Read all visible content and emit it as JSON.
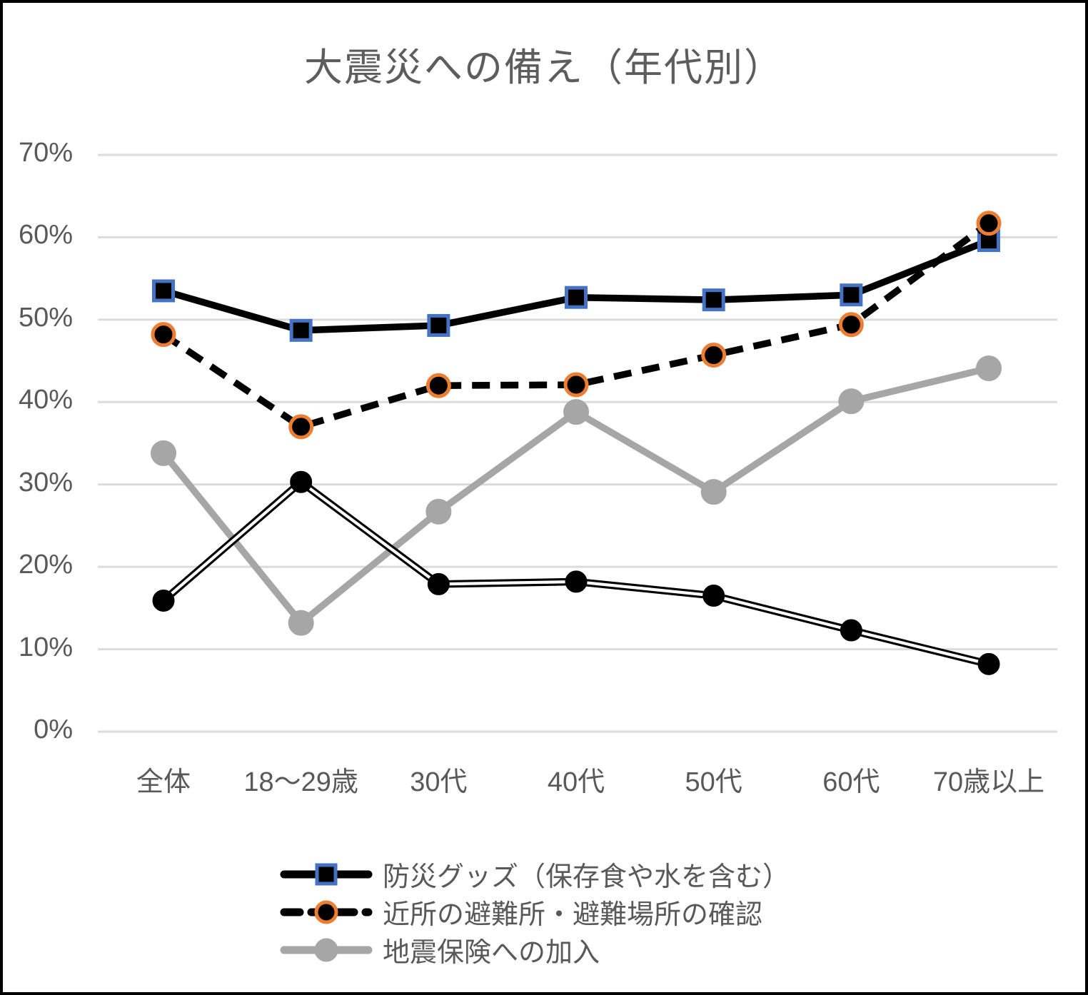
{
  "chart_data": {
    "type": "line",
    "title": "大震災への備え（年代別）",
    "categories": [
      "全体",
      "18～29歳",
      "30代",
      "40代",
      "50代",
      "60代",
      "70歳以上"
    ],
    "y_ticks": [
      {
        "value": 70,
        "label": "70%"
      },
      {
        "value": 60,
        "label": "60%"
      },
      {
        "value": 50,
        "label": "50%"
      },
      {
        "value": 40,
        "label": "40%"
      },
      {
        "value": 30,
        "label": "30%"
      },
      {
        "value": 20,
        "label": "20%"
      },
      {
        "value": 10,
        "label": "10%"
      },
      {
        "value": 0,
        "label": "0%"
      }
    ],
    "ylim": [
      0,
      70
    ],
    "grid": "horizontal",
    "gridline_color": "#DBDBDB",
    "legend_position": "bottom",
    "text_color": "#595959",
    "series": [
      {
        "name": "防災グッズ（保存食や水を含む）",
        "values": [
          53.5,
          48.7,
          49.3,
          52.7,
          52.4,
          53.0,
          59.6
        ],
        "line": "solid",
        "color": "#000000",
        "marker": "square",
        "marker_fill": "#000000",
        "marker_stroke": "#4472C4",
        "z": 3,
        "legend": true
      },
      {
        "name": "近所の避難所・避難場所の確認",
        "values": [
          48.2,
          37.0,
          42.0,
          42.1,
          45.7,
          49.4,
          61.7
        ],
        "line": "dashed",
        "color": "#000000",
        "marker": "circle",
        "marker_fill": "#000000",
        "marker_stroke": "#ED7D31",
        "z": 4,
        "legend": true
      },
      {
        "name": "地震保険への加入",
        "values": [
          33.8,
          13.2,
          26.7,
          38.8,
          29.1,
          40.1,
          44.1
        ],
        "line": "solid",
        "color": "#A6A6A6",
        "marker": "circle",
        "marker_fill": "#A6A6A6",
        "marker_stroke": "#A6A6A6",
        "z": 1,
        "legend": true
      },
      {
        "name": "",
        "values": [
          15.9,
          30.3,
          17.9,
          18.2,
          16.5,
          12.3,
          8.2
        ],
        "line": "double",
        "color": "#000000",
        "marker": "circle",
        "marker_fill": "#000000",
        "marker_stroke": "#000000",
        "z": 2,
        "legend": false
      }
    ]
  }
}
